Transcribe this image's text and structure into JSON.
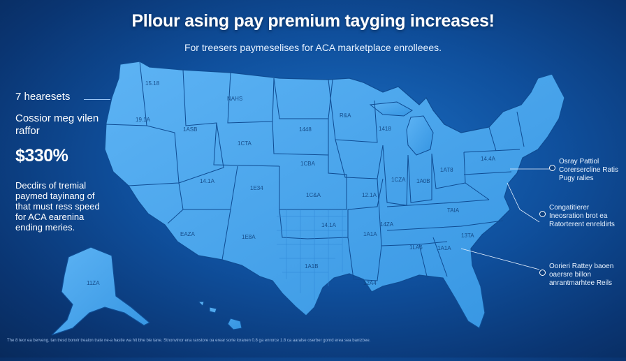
{
  "header": {
    "title": "Pllour asing pay premium tayging increases!",
    "subtitle": "For treesers paymeselises for ACA marketplace enrolleees."
  },
  "left_panel": {
    "label": "7 hearesets",
    "sub_label": "Cossior meg vilen raffor",
    "value": "$330%",
    "description": "Decdirs of tremial paymed tayinang of that must ress speed for ACA earenina ending meries."
  },
  "callouts": [
    {
      "text": "Osray Pattiol Corersercline Ratis Pugy ralies"
    },
    {
      "text": "Congatitierer Ineosration brot ea Ratorterent enreldirts"
    },
    {
      "text": "Oorieri Rattey baoen oaersre billon anrantmarhtee Reils"
    }
  ],
  "state_labels": [
    "15.18",
    "NAHS",
    "19.1A",
    "1ASB",
    "1CTA",
    "1448",
    "1CBA",
    "14.1A",
    "1E34",
    "R&A",
    "1418",
    "1C&A",
    "EAZA",
    "1E8A",
    "14.1A",
    "12.1A",
    "1A1A",
    "14ZA",
    "1AT8",
    "1A0B",
    "1CZA",
    "1LA6",
    "1A1A",
    "12A4",
    "1A1B",
    "TAIA",
    "14.4A",
    "11ZA",
    "13TA"
  ],
  "footnote": "The 8 teor ea berveng, tan tresd bonvir treaion trate ne-a hastle wa hit bhe bie tane. Stnonvinor ena ranstore oa erear sorte loranen 0.8 ga enrorce 1.8 ca aaralse oserber gonrd erea sea banizbee.",
  "colors": {
    "background": "#0f4f9c",
    "state_fill": "#4aa6ef",
    "state_border": "#0f4c93",
    "accent": "#ffffff"
  }
}
